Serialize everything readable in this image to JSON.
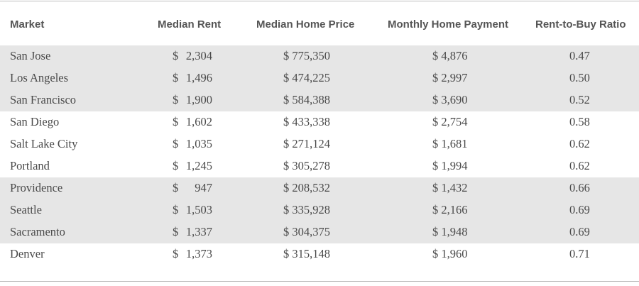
{
  "headers": {
    "market": "Market",
    "rent": "Median Rent",
    "price": "Median Home Price",
    "payment": "Monthly Home Payment",
    "ratio": "Rent-to-Buy Ratio"
  },
  "rows": [
    {
      "market": "San Jose",
      "rent_symbol": "$",
      "rent": "2,304",
      "price": "$ 775,350",
      "payment": "$ 4,876",
      "ratio": "0.47",
      "shaded": true
    },
    {
      "market": "Los Angeles",
      "rent_symbol": "$",
      "rent": "1,496",
      "price": "$ 474,225",
      "payment": "$ 2,997",
      "ratio": "0.50",
      "shaded": true
    },
    {
      "market": "San Francisco",
      "rent_symbol": "$",
      "rent": "1,900",
      "price": "$ 584,388",
      "payment": "$ 3,690",
      "ratio": "0.52",
      "shaded": true
    },
    {
      "market": "San Diego",
      "rent_symbol": "$",
      "rent": "1,602",
      "price": "$ 433,338",
      "payment": "$ 2,754",
      "ratio": "0.58",
      "shaded": false
    },
    {
      "market": "Salt Lake City",
      "rent_symbol": "$",
      "rent": "1,035",
      "price": "$ 271,124",
      "payment": "$ 1,681",
      "ratio": "0.62",
      "shaded": false
    },
    {
      "market": "Portland",
      "rent_symbol": "$",
      "rent": "1,245",
      "price": "$ 305,278",
      "payment": "$ 1,994",
      "ratio": "0.62",
      "shaded": false
    },
    {
      "market": "Providence",
      "rent_symbol": "$",
      "rent": "947",
      "price": "$ 208,532",
      "payment": "$ 1,432",
      "ratio": "0.66",
      "shaded": true
    },
    {
      "market": "Seattle",
      "rent_symbol": "$",
      "rent": "1,503",
      "price": "$ 335,928",
      "payment": "$ 2,166",
      "ratio": "0.69",
      "shaded": true
    },
    {
      "market": "Sacramento",
      "rent_symbol": "$",
      "rent": "1,337",
      "price": "$ 304,375",
      "payment": "$ 1,948",
      "ratio": "0.69",
      "shaded": true
    },
    {
      "market": "Denver",
      "rent_symbol": "$",
      "rent": "1,373",
      "price": "$ 315,148",
      "payment": "$ 1,960",
      "ratio": "0.71",
      "shaded": false
    }
  ]
}
